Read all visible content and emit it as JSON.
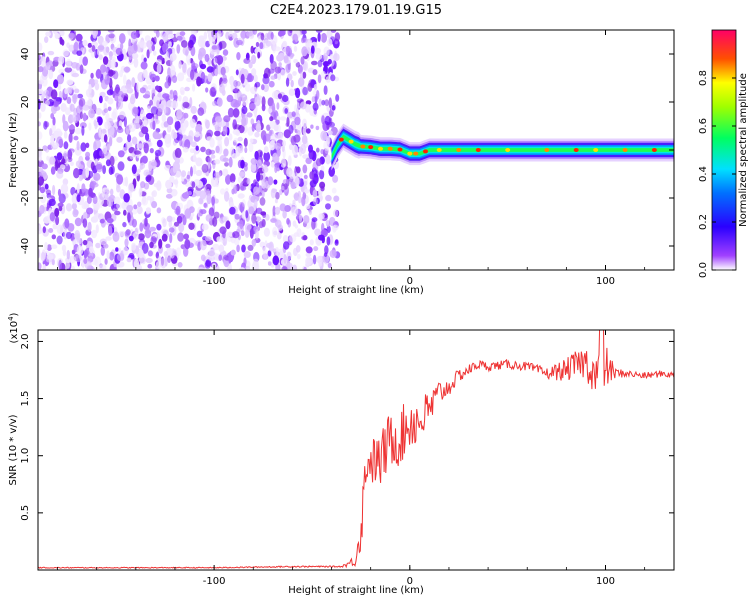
{
  "figure": {
    "title": "C2E4.2023.179.01.19.G15"
  },
  "chart_data": [
    {
      "type": "heatmap",
      "xlabel": "Height of straight line (km)",
      "ylabel": "Frequency (Hz)",
      "xlim": [
        -190,
        135
      ],
      "ylim": [
        -50,
        50
      ],
      "xticks": [
        -100,
        0,
        100
      ],
      "yticks": [
        -40,
        -20,
        0,
        20,
        40
      ],
      "colorbar": {
        "label": "Normalized spectral amplitude",
        "range": [
          0,
          1
        ],
        "ticks": [
          0.0,
          0.2,
          0.4,
          0.6,
          0.8
        ],
        "colors": [
          "#ffffff",
          "#8800ff",
          "#0000ff",
          "#00ffff",
          "#00ff00",
          "#ffff00",
          "#ff0000",
          "#ff0066"
        ]
      },
      "noise_region_x": [
        -190,
        -40
      ],
      "signal_ridge": {
        "x": [
          -40,
          -37,
          -34,
          -31,
          -28,
          -25,
          -20,
          -15,
          -10,
          -5,
          0,
          5,
          10,
          20,
          40,
          60,
          80,
          100,
          120,
          135
        ],
        "y": [
          -3,
          2,
          5.5,
          4,
          2.5,
          1.5,
          1.2,
          0.5,
          0.5,
          0.2,
          -1.5,
          -1.5,
          0,
          0,
          0,
          0,
          0,
          0,
          0,
          0
        ]
      }
    },
    {
      "type": "line",
      "xlabel": "Height of straight line (km)",
      "ylabel": "SNR (10 * v/v)",
      "y_multiplier": "(x10",
      "y_multiplier_exp": "4",
      "y_multiplier_close": ")",
      "xlim": [
        -190,
        135
      ],
      "ylim": [
        0,
        2.1
      ],
      "xticks": [
        -100,
        0,
        100
      ],
      "yticks": [
        0.5,
        1.0,
        1.5,
        2.0
      ],
      "ytick_labels": [
        "0.5",
        "1.0",
        "1.5",
        "2.0"
      ],
      "series": [
        {
          "color": "#ee3333",
          "x": [
            -190,
            -150,
            -100,
            -60,
            -35,
            -28,
            -25,
            -22,
            -20,
            -15,
            -10,
            -5,
            0,
            5,
            10,
            15,
            20,
            25,
            30,
            35,
            40,
            50,
            60,
            70,
            80,
            85,
            90,
            95,
            100,
            105,
            110,
            120,
            130,
            135
          ],
          "y": [
            0.02,
            0.02,
            0.02,
            0.03,
            0.03,
            0.08,
            0.35,
            1.0,
            0.95,
            0.95,
            1.15,
            1.15,
            1.3,
            1.3,
            1.4,
            1.55,
            1.6,
            1.7,
            1.75,
            1.8,
            1.78,
            1.8,
            1.78,
            1.72,
            1.75,
            1.8,
            1.82,
            1.7,
            1.78,
            1.72,
            1.72,
            1.7,
            1.72,
            1.7
          ],
          "noise_amp": [
            0.004,
            0.004,
            0.004,
            0.006,
            0.006,
            0.05,
            0.2,
            0.25,
            0.2,
            0.25,
            0.25,
            0.25,
            0.25,
            0.22,
            0.18,
            0.12,
            0.08,
            0.06,
            0.05,
            0.04,
            0.04,
            0.04,
            0.04,
            0.05,
            0.1,
            0.12,
            0.15,
            0.2,
            0.2,
            0.05,
            0.03,
            0.03,
            0.03,
            0.03
          ]
        }
      ]
    }
  ]
}
